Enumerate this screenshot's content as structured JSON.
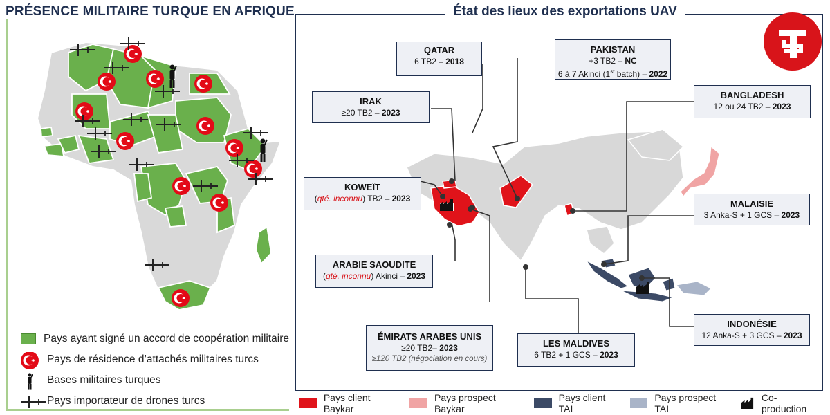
{
  "left": {
    "title": "PRÉSENCE MILITAIRE TURQUE EN AFRIQUE",
    "legend": [
      {
        "label": "Pays ayant signé un accord de coopération militaire",
        "symbol": "green-square-icon",
        "color": "#6ab04c"
      },
      {
        "label": "Pays de résidence d’attachés militaires turcs",
        "symbol": "turkish-flag-icon",
        "color": "#e30a17"
      },
      {
        "label": "Bases militaires turques",
        "symbol": "soldier-icon",
        "color": "#111111"
      },
      {
        "label": "Pays importateur de drones turcs",
        "symbol": "drone-icon",
        "color": "#222222"
      }
    ]
  },
  "right": {
    "title": "État des lieux des exportations UAV",
    "boxes": {
      "qatar": {
        "country": "QATAR",
        "line1_a": "6 TB2 – ",
        "line1_b": "2018"
      },
      "pakistan": {
        "country": "PAKISTAN",
        "line1_a": "+3 TB2 – ",
        "line1_b": "NC",
        "line2_a": "6 à 7 Akinci (1",
        "line2_sup": "st",
        "line2_c": " batch) – ",
        "line2_b": "2022"
      },
      "irak": {
        "country": "IRAK",
        "line1_a": "≥20 TB2 – ",
        "line1_b": "2023"
      },
      "bangladesh": {
        "country": "BANGLADESH",
        "line1_a": "12 ou 24 TB2 – ",
        "line1_b": "2023"
      },
      "koweit": {
        "country": "KOWEÏT",
        "open": "(",
        "red": "qté. inconnu",
        "line1_a": ") TB2 – ",
        "line1_b": "2023"
      },
      "malaisie": {
        "country": "MALAISIE",
        "line1_a": "3 Anka-S + 1 GCS – ",
        "line1_b": "2023"
      },
      "arabie": {
        "country": "ARABIE SAOUDITE",
        "open": "(",
        "red": "qté. inconnu",
        "line1_a": ") Akinci – ",
        "line1_b": "2023"
      },
      "emirats": {
        "country": "ÉMIRATS ARABES UNIS",
        "line1_a": "≥20 TB2– ",
        "line1_b": "2023",
        "note": "≥120 TB2 (négociation en cours)"
      },
      "maldives": {
        "country": "LES MALDIVES",
        "line1_a": "6 TB2 + 1 GCS – ",
        "line1_b": "2023"
      },
      "indonesie": {
        "country": "INDONÉSIE",
        "line1_a": "12 Anka-S + 3 GCS – ",
        "line1_b": "2023"
      }
    },
    "legend": [
      {
        "label": "Pays client Baykar",
        "color": "#e0131a"
      },
      {
        "label": "Pays prospect Baykar",
        "color": "#f0a4a4"
      },
      {
        "label": "Pays client TAI",
        "color": "#3c4a66"
      },
      {
        "label": "Pays prospect TAI",
        "color": "#a9b4c8"
      },
      {
        "label": "Co-production",
        "symbol": "factory-icon",
        "color": "#111111"
      }
    ],
    "logo": "ts-logo-icon"
  }
}
